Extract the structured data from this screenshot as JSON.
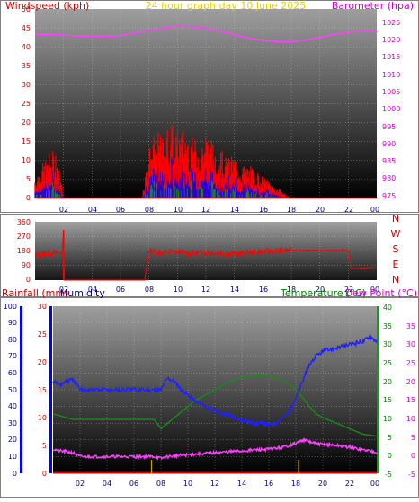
{
  "header": {
    "left_title": "Windspeed (kph)",
    "center_title": "24 hour graph day  10 June 2025",
    "right_title": "Barometer (hpa)"
  },
  "colors": {
    "wind": "#ff0000",
    "gust_bars": "#ff0000",
    "wind_dir": "#ff0000",
    "wind_dir_line": "#b00000",
    "barometer": "#ff40ff",
    "rain": "#cc0000",
    "rain_axis": "#cc0000",
    "humidity": "#2020ff",
    "humidity_axis": "#0000cc",
    "temperature": "#1a8a1a",
    "temperature_axis": "#008000",
    "dew_point": "#ff40ff",
    "dew_axis": "#cc00cc",
    "accent_blue": "#0000ff",
    "accent_green": "#00aa00",
    "rain_ticks": "#c8a000",
    "axis_line": "#00cc00"
  },
  "chart_data": [
    {
      "type": "line",
      "title": "24 hour graph day  10 June 2025",
      "xlabel": "",
      "x_ticks": [
        "02",
        "04",
        "06",
        "08",
        "10",
        "12",
        "14",
        "16",
        "18",
        "20",
        "22",
        "00"
      ],
      "y_left": {
        "label": "Windspeed (kph)",
        "ticks": [
          "0",
          "5",
          "10",
          "15",
          "20",
          "25",
          "30",
          "35",
          "40",
          "45",
          "50"
        ],
        "range": [
          0,
          50
        ]
      },
      "y_right": {
        "label": "Barometer (hpa)",
        "ticks": [
          "975",
          "980",
          "985",
          "990",
          "995",
          "1000",
          "1005",
          "1010",
          "1015",
          "1020",
          "1025"
        ],
        "range": [
          975,
          1027
        ]
      },
      "grid": true,
      "series": [
        {
          "name": "Barometer (hpa)",
          "x": [
            0,
            1,
            2,
            3,
            4,
            5,
            6,
            7,
            8,
            9,
            10,
            11,
            12,
            13,
            14,
            15,
            16,
            17,
            18,
            19,
            20,
            21,
            22,
            23,
            24
          ],
          "values": [
            1020,
            1020,
            1019.8,
            1019.6,
            1019.5,
            1019.5,
            1019.7,
            1020.4,
            1021.1,
            1021.8,
            1022.3,
            1022.2,
            1021.7,
            1020.9,
            1020.0,
            1019.0,
            1018.4,
            1018.0,
            1018.0,
            1018.5,
            1019.2,
            1020.0,
            1020.6,
            1021.0,
            1021.0
          ]
        },
        {
          "name": "Windspeed (kph)",
          "x": [
            0,
            0.5,
            1.0,
            1.5,
            2.0,
            7.5,
            8.0,
            8.5,
            9.0,
            9.5,
            10.0,
            10.5,
            11.0,
            11.5,
            12.0,
            12.5,
            13.0,
            13.5,
            14.0,
            14.5,
            15.0,
            15.5,
            16.0,
            16.5,
            17.0,
            17.5,
            18.0
          ],
          "values": [
            4,
            6,
            8,
            9,
            0,
            0,
            9,
            12,
            11,
            14,
            12,
            13,
            11,
            10,
            12,
            10,
            9,
            7,
            8,
            6,
            6,
            5,
            4,
            3,
            2,
            1,
            0
          ]
        }
      ]
    },
    {
      "type": "line",
      "x_ticks": [
        "02",
        "04",
        "06",
        "08",
        "10",
        "12",
        "14",
        "16",
        "18",
        "20",
        "22",
        "00"
      ],
      "y_left": {
        "ticks": [
          "0",
          "90",
          "180",
          "270",
          "360"
        ],
        "range": [
          0,
          360
        ]
      },
      "y_right": {
        "ticks": [
          "N",
          "W",
          "S",
          "E",
          "N"
        ]
      },
      "grid": true,
      "series": [
        {
          "name": "Wind direction",
          "x": [
            0,
            0.5,
            1.0,
            1.5,
            1.9,
            2.0,
            2.01,
            7.7,
            8.0,
            9,
            10,
            11,
            12,
            13,
            14,
            15,
            16,
            17,
            18,
            19,
            20,
            21,
            22,
            22.2,
            24
          ],
          "values": [
            150,
            160,
            170,
            165,
            170,
            310,
            0,
            0,
            180,
            170,
            175,
            165,
            172,
            168,
            160,
            170,
            175,
            180,
            185,
            185,
            185,
            185,
            185,
            70,
            80
          ]
        }
      ]
    },
    {
      "type": "line",
      "x_ticks": [
        "02",
        "04",
        "06",
        "08",
        "10",
        "12",
        "14",
        "16",
        "18",
        "20",
        "22",
        "00"
      ],
      "y_axes": [
        {
          "label": "Rainfall (mm)",
          "ticks": [
            "0",
            "10",
            "20",
            "30",
            "40",
            "50",
            "60",
            "70",
            "80",
            "90",
            "100"
          ],
          "range": [
            0,
            100
          ]
        },
        {
          "label": "Humidity",
          "ticks": [
            "0",
            "5",
            "10",
            "15",
            "20",
            "25",
            "30"
          ],
          "range": [
            0,
            30
          ]
        },
        {
          "label": "Temperature (°C)",
          "ticks": [
            "-5",
            "0",
            "5",
            "10",
            "15",
            "20",
            "25",
            "30",
            "35",
            "40"
          ],
          "range": [
            -5,
            40
          ]
        },
        {
          "label": "Dew Point (°C)",
          "ticks": [
            "-5",
            "0",
            "5",
            "10",
            "15",
            "20",
            "25",
            "30",
            "35",
            "40"
          ],
          "range": [
            -5,
            40
          ]
        }
      ],
      "grid": true,
      "series": [
        {
          "name": "Humidity",
          "x": [
            0,
            0.5,
            1,
            1.5,
            2,
            3,
            4,
            5,
            6,
            7,
            7.5,
            8,
            8.5,
            9,
            9.5,
            10,
            10.5,
            11,
            11.5,
            12,
            12.5,
            13,
            13.5,
            14,
            14.5,
            15,
            15.5,
            16,
            16.5,
            17,
            17.5,
            18,
            18.5,
            19,
            19.5,
            20,
            21,
            22,
            23,
            23.5,
            24
          ],
          "values": [
            55,
            53,
            55,
            56,
            50,
            50,
            50,
            50,
            50,
            50,
            50,
            50,
            57,
            55,
            50,
            47,
            43,
            42,
            39,
            38,
            36,
            35,
            33,
            32,
            31,
            30,
            30,
            29,
            30,
            33,
            37,
            45,
            55,
            65,
            70,
            73,
            75,
            77,
            79,
            82,
            79
          ]
        },
        {
          "name": "Temperature (°C)",
          "x": [
            0,
            0.5,
            1,
            1.5,
            2,
            3,
            4,
            5,
            6,
            7,
            7.5,
            8,
            8.5,
            9,
            9.5,
            10,
            10.5,
            11,
            11.5,
            12,
            12.5,
            13,
            13.5,
            14,
            14.5,
            15,
            15.5,
            16,
            16.5,
            17,
            17.5,
            18,
            18.5,
            19,
            19.5,
            20,
            21,
            22,
            23,
            24
          ],
          "values": [
            11,
            10.5,
            10,
            9.5,
            9.5,
            9.5,
            9.5,
            9.5,
            9.5,
            9.5,
            9.5,
            7,
            8.5,
            10,
            11.5,
            13,
            14.5,
            15.5,
            16.5,
            17.5,
            18.5,
            19.5,
            20.2,
            20.7,
            21,
            21.2,
            21.2,
            21,
            20.8,
            20,
            19,
            17.5,
            15.5,
            13,
            11,
            10,
            8.5,
            7,
            5.5,
            5
          ]
        },
        {
          "name": "Dew Point (°C)",
          "x": [
            0,
            0.5,
            1,
            1.5,
            2,
            3,
            4,
            5,
            6,
            7,
            7.5,
            8,
            8.5,
            9,
            10,
            11,
            12,
            13,
            14,
            15,
            16,
            17,
            17.5,
            18,
            18.5,
            19,
            19.5,
            20,
            21,
            22,
            23,
            24
          ],
          "values": [
            1.5,
            1,
            0.8,
            0.5,
            -0.5,
            -0.5,
            -0.5,
            -0.5,
            -0.5,
            -0.5,
            -0.5,
            -1,
            -0.5,
            -0.3,
            0,
            0.3,
            0.5,
            0.8,
            1,
            1.3,
            1.5,
            2,
            2.5,
            3,
            4,
            3.5,
            3,
            2.8,
            2.5,
            2,
            1.3,
            0.8
          ]
        },
        {
          "name": "Rainfall (mm)",
          "x": [
            0,
            24
          ],
          "values": [
            0,
            0
          ]
        }
      ],
      "rain_ticks_at": [
        7.3,
        18.2
      ]
    }
  ],
  "axis_labels": {
    "panel1": {
      "left": [
        "50",
        "45",
        "40",
        "35",
        "30",
        "25",
        "20",
        "15",
        "10",
        "5",
        "0"
      ],
      "right": [
        "1025",
        "1020",
        "1015",
        "1010",
        "1005",
        "1000",
        "995",
        "990",
        "985",
        "980",
        "975"
      ]
    },
    "panel2": {
      "left": [
        "360",
        "270",
        "180",
        "90",
        "0"
      ],
      "right": [
        "N",
        "W",
        "S",
        "E",
        "N"
      ]
    },
    "panel3": {
      "rain_title": "Rainfall (mm)",
      "humidity_title": "Humidity",
      "temperature_title": "Temperature (°C)",
      "dew_title": "Dew Point (°C)",
      "rain_ticks": [
        "100",
        "90",
        "80",
        "70",
        "60",
        "50",
        "40",
        "30",
        "20",
        "10",
        "0"
      ],
      "humidity_ticks": [
        "30",
        "25",
        "20",
        "15",
        "10",
        "5",
        "0"
      ],
      "temp_ticks": [
        "40",
        "35",
        "30",
        "25",
        "20",
        "15",
        "10",
        "5",
        "0",
        "-5"
      ],
      "dew_ticks": [
        "35",
        "30",
        "25",
        "20",
        "15",
        "10",
        "5",
        "0",
        "-5"
      ]
    },
    "x": [
      "02",
      "04",
      "06",
      "08",
      "10",
      "12",
      "14",
      "16",
      "18",
      "20",
      "22",
      "00"
    ]
  }
}
